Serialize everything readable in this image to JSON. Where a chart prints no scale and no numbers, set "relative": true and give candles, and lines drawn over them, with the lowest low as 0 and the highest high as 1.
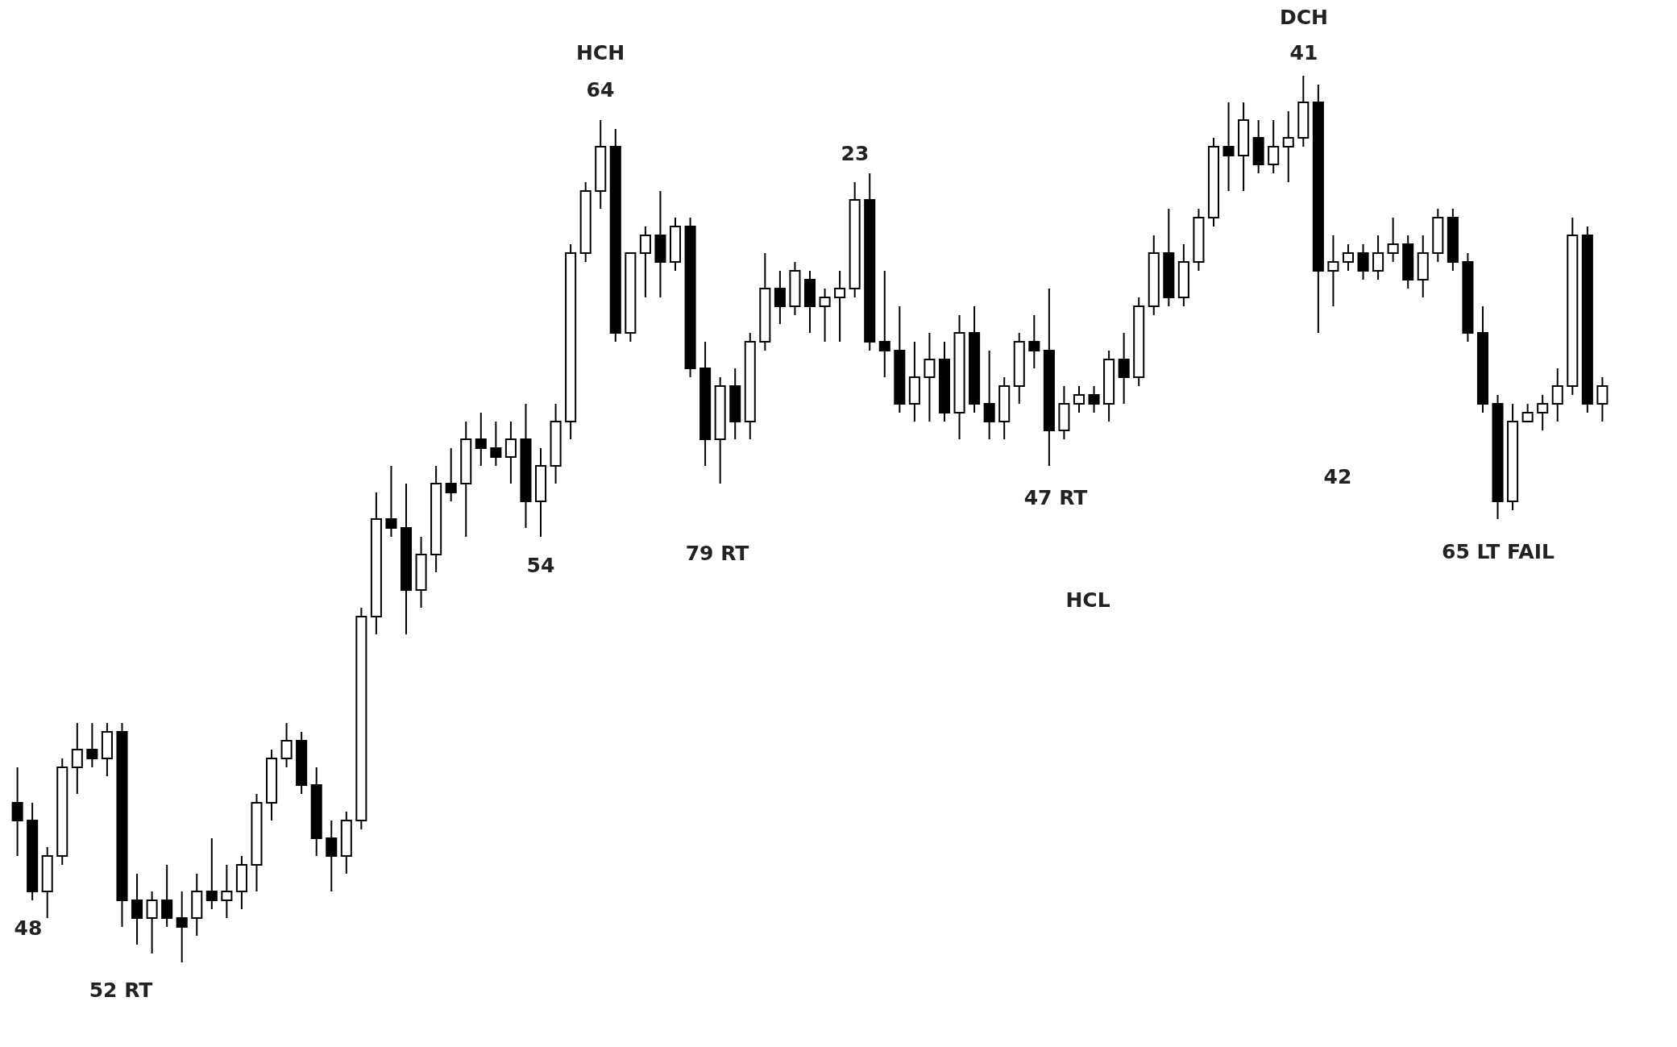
{
  "chart_data": {
    "type": "candlestick",
    "relative": true,
    "categories": [
      null,
      null,
      null,
      null,
      null,
      null,
      null,
      null,
      null,
      null,
      null,
      null,
      null,
      null,
      null,
      null,
      null,
      null,
      null,
      null,
      null,
      null,
      null,
      null,
      null,
      null,
      null,
      null,
      null,
      null,
      null,
      null,
      null,
      null,
      null,
      null,
      null,
      null,
      null,
      null,
      null,
      null,
      null,
      null,
      null,
      null,
      null,
      null,
      null,
      null,
      null,
      null,
      null,
      null,
      null,
      null,
      null,
      null,
      null,
      null,
      null,
      null,
      null,
      null,
      null,
      null,
      null,
      null,
      null,
      null,
      null,
      null,
      null,
      null,
      null,
      null,
      null,
      null,
      null,
      null,
      null,
      null,
      null,
      null,
      null,
      null,
      null,
      null,
      null,
      null,
      null,
      null,
      null,
      null,
      null,
      null,
      null,
      null,
      null,
      null,
      null,
      null,
      null,
      null,
      null,
      null,
      null
    ],
    "ohlc": [
      [
        0.18,
        0.22,
        0.12,
        0.16
      ],
      [
        0.16,
        0.18,
        0.07,
        0.08
      ],
      [
        0.08,
        0.13,
        0.05,
        0.12
      ],
      [
        0.12,
        0.23,
        0.11,
        0.22
      ],
      [
        0.22,
        0.27,
        0.19,
        0.24
      ],
      [
        0.24,
        0.27,
        0.22,
        0.23
      ],
      [
        0.23,
        0.27,
        0.21,
        0.26
      ],
      [
        0.26,
        0.27,
        0.04,
        0.07
      ],
      [
        0.07,
        0.1,
        0.02,
        0.05
      ],
      [
        0.05,
        0.08,
        0.01,
        0.07
      ],
      [
        0.07,
        0.11,
        0.04,
        0.05
      ],
      [
        0.05,
        0.08,
        0,
        0.04
      ],
      [
        0.05,
        0.1,
        0.03,
        0.08
      ],
      [
        0.08,
        0.14,
        0.06,
        0.07
      ],
      [
        0.07,
        0.11,
        0.05,
        0.08
      ],
      [
        0.08,
        0.12,
        0.06,
        0.11
      ],
      [
        0.11,
        0.19,
        0.08,
        0.18
      ],
      [
        0.18,
        0.24,
        0.16,
        0.23
      ],
      [
        0.23,
        0.27,
        0.22,
        0.25
      ],
      [
        0.25,
        0.26,
        0.19,
        0.2
      ],
      [
        0.2,
        0.22,
        0.12,
        0.14
      ],
      [
        0.14,
        0.16,
        0.08,
        0.12
      ],
      [
        0.12,
        0.17,
        0.1,
        0.16
      ],
      [
        0.16,
        0.4,
        0.15,
        0.39
      ],
      [
        0.39,
        0.53,
        0.37,
        0.5
      ],
      [
        0.5,
        0.56,
        0.48,
        0.49
      ],
      [
        0.49,
        0.54,
        0.37,
        0.42
      ],
      [
        0.42,
        0.48,
        0.4,
        0.46
      ],
      [
        0.46,
        0.56,
        0.44,
        0.54
      ],
      [
        0.54,
        0.58,
        0.52,
        0.53
      ],
      [
        0.54,
        0.61,
        0.48,
        0.59
      ],
      [
        0.59,
        0.62,
        0.56,
        0.58
      ],
      [
        0.58,
        0.61,
        0.56,
        0.57
      ],
      [
        0.57,
        0.61,
        0.54,
        0.59
      ],
      [
        0.59,
        0.63,
        0.49,
        0.52
      ],
      [
        0.52,
        0.58,
        0.48,
        0.56
      ],
      [
        0.56,
        0.63,
        0.54,
        0.61
      ],
      [
        0.61,
        0.81,
        0.59,
        0.8
      ],
      [
        0.8,
        0.88,
        0.79,
        0.87
      ],
      [
        0.87,
        0.95,
        0.85,
        0.92
      ],
      [
        0.92,
        0.94,
        0.7,
        0.71
      ],
      [
        0.71,
        0.8,
        0.7,
        0.8
      ],
      [
        0.8,
        0.83,
        0.75,
        0.82
      ],
      [
        0.82,
        0.87,
        0.75,
        0.79
      ],
      [
        0.79,
        0.84,
        0.78,
        0.83
      ],
      [
        0.83,
        0.84,
        0.66,
        0.67
      ],
      [
        0.67,
        0.7,
        0.56,
        0.59
      ],
      [
        0.59,
        0.66,
        0.54,
        0.65
      ],
      [
        0.65,
        0.67,
        0.59,
        0.61
      ],
      [
        0.61,
        0.71,
        0.59,
        0.7
      ],
      [
        0.7,
        0.8,
        0.69,
        0.76
      ],
      [
        0.76,
        0.78,
        0.72,
        0.74
      ],
      [
        0.74,
        0.79,
        0.73,
        0.78
      ],
      [
        0.77,
        0.78,
        0.71,
        0.74
      ],
      [
        0.74,
        0.76,
        0.7,
        0.75
      ],
      [
        0.75,
        0.78,
        0.7,
        0.76
      ],
      [
        0.76,
        0.88,
        0.75,
        0.86
      ],
      [
        0.86,
        0.89,
        0.69,
        0.7
      ],
      [
        0.7,
        0.78,
        0.66,
        0.69
      ],
      [
        0.69,
        0.74,
        0.62,
        0.63
      ],
      [
        0.63,
        0.7,
        0.61,
        0.66
      ],
      [
        0.66,
        0.71,
        0.61,
        0.68
      ],
      [
        0.68,
        0.7,
        0.61,
        0.62
      ],
      [
        0.62,
        0.73,
        0.59,
        0.71
      ],
      [
        0.71,
        0.74,
        0.62,
        0.63
      ],
      [
        0.63,
        0.69,
        0.59,
        0.61
      ],
      [
        0.61,
        0.66,
        0.59,
        0.65
      ],
      [
        0.65,
        0.71,
        0.63,
        0.7
      ],
      [
        0.7,
        0.73,
        0.67,
        0.69
      ],
      [
        0.69,
        0.76,
        0.56,
        0.6
      ],
      [
        0.6,
        0.65,
        0.59,
        0.63
      ],
      [
        0.63,
        0.65,
        0.62,
        0.64
      ],
      [
        0.64,
        0.65,
        0.62,
        0.63
      ],
      [
        0.63,
        0.69,
        0.61,
        0.68
      ],
      [
        0.68,
        0.71,
        0.63,
        0.66
      ],
      [
        0.66,
        0.75,
        0.65,
        0.74
      ],
      [
        0.74,
        0.82,
        0.73,
        0.8
      ],
      [
        0.8,
        0.85,
        0.74,
        0.75
      ],
      [
        0.75,
        0.81,
        0.74,
        0.79
      ],
      [
        0.79,
        0.85,
        0.78,
        0.84
      ],
      [
        0.84,
        0.93,
        0.83,
        0.92
      ],
      [
        0.92,
        0.97,
        0.87,
        0.91
      ],
      [
        0.91,
        0.97,
        0.87,
        0.95
      ],
      [
        0.93,
        0.95,
        0.89,
        0.9
      ],
      [
        0.9,
        0.95,
        0.89,
        0.92
      ],
      [
        0.92,
        0.96,
        0.88,
        0.93
      ],
      [
        0.93,
        1,
        0.92,
        0.97
      ],
      [
        0.97,
        0.99,
        0.71,
        0.78
      ],
      [
        0.78,
        0.82,
        0.74,
        0.79
      ],
      [
        0.79,
        0.81,
        0.78,
        0.8
      ],
      [
        0.8,
        0.81,
        0.77,
        0.78
      ],
      [
        0.78,
        0.82,
        0.77,
        0.8
      ],
      [
        0.8,
        0.84,
        0.79,
        0.81
      ],
      [
        0.81,
        0.82,
        0.76,
        0.77
      ],
      [
        0.77,
        0.82,
        0.75,
        0.8
      ],
      [
        0.8,
        0.85,
        0.79,
        0.84
      ],
      [
        0.84,
        0.85,
        0.78,
        0.79
      ],
      [
        0.79,
        0.8,
        0.7,
        0.71
      ],
      [
        0.71,
        0.74,
        0.62,
        0.63
      ],
      [
        0.63,
        0.64,
        0.5,
        0.52
      ],
      [
        0.52,
        0.63,
        0.51,
        0.61
      ],
      [
        0.61,
        0.63,
        0.61,
        0.62
      ],
      [
        0.62,
        0.64,
        0.6,
        0.63
      ],
      [
        0.63,
        0.67,
        0.61,
        0.65
      ],
      [
        0.65,
        0.84,
        0.64,
        0.82
      ],
      [
        0.82,
        0.83,
        0.62,
        0.63
      ],
      [
        0.63,
        0.66,
        0.61,
        0.65
      ]
    ],
    "annotations": [
      "HCH",
      "64",
      "23",
      "DCH",
      "41",
      "42",
      "54",
      "48",
      "52 RT",
      "79 RT",
      "47 RT",
      "HCL",
      "65 LT FAIL"
    ]
  }
}
